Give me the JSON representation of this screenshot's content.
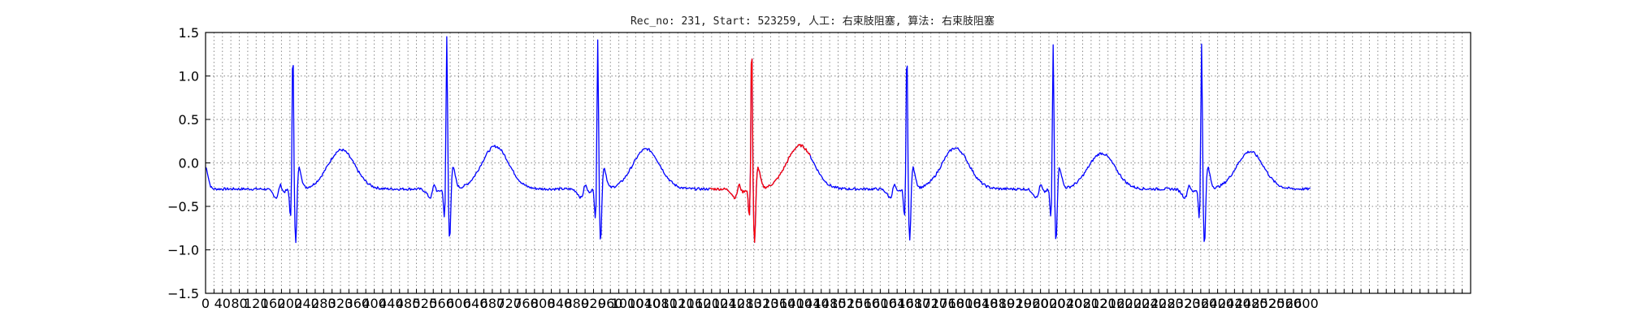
{
  "chart_data": {
    "type": "line",
    "title": "Rec_no: 231, Start: 523259, 人工: 右束肢阻塞, 算法: 右束肢阻塞",
    "xlabel": "",
    "ylabel": "",
    "xlim": [
      0,
      3000
    ],
    "ylim": [
      -1.5,
      1.5
    ],
    "grid": true,
    "x_tick_step": 20,
    "x_tick_labels": [
      "0",
      "40",
      "80",
      "120",
      "160",
      "200",
      "240",
      "280",
      "320",
      "360",
      "400",
      "440",
      "480",
      "520",
      "560",
      "600",
      "640",
      "680",
      "720",
      "760",
      "800",
      "840",
      "880",
      "920",
      "960",
      "1000",
      "1040",
      "1080",
      "1120",
      "1160",
      "1200",
      "1240",
      "1280",
      "1320",
      "1360",
      "1400",
      "1440",
      "1480",
      "1520",
      "1560",
      "1600",
      "1640",
      "1680",
      "1720",
      "1760",
      "1800",
      "1840",
      "1880",
      "1920",
      "1960",
      "2000",
      "2040",
      "2080",
      "2120",
      "2160",
      "2200",
      "2240",
      "2280",
      "2320",
      "2360",
      "2400",
      "2440",
      "2480",
      "2520",
      "2560",
      "2600"
    ],
    "y_tick_labels": [
      "1.5",
      "1.0",
      "0.5",
      "0.0",
      "−0.5",
      "−1.0",
      "−1.5"
    ],
    "y_ticks": [
      1.5,
      1.0,
      0.5,
      0.0,
      -0.5,
      -1.0,
      -1.5
    ],
    "highlight_color": "#ff0000",
    "base_color": "#0000ff",
    "beats": [
      {
        "r": 207,
        "r_peak": 1.43,
        "s_min": -1.1,
        "t_peak": 0.15
      },
      {
        "r": 572,
        "r_peak": 1.5,
        "s_min": -1.05,
        "t_peak": 0.19
      },
      {
        "r": 930,
        "r_peak": 1.45,
        "s_min": -1.08,
        "t_peak": 0.16
      },
      {
        "r": 1295,
        "r_peak": 1.5,
        "s_min": -1.1,
        "t_peak": 0.2
      },
      {
        "r": 1663,
        "r_peak": 1.42,
        "s_min": -1.07,
        "t_peak": 0.17
      },
      {
        "r": 2010,
        "r_peak": 1.4,
        "s_min": -1.07,
        "t_peak": 0.11
      },
      {
        "r": 2362,
        "r_peak": 1.42,
        "s_min": -1.13,
        "t_peak": 0.13
      }
    ],
    "series": [
      {
        "name": "",
        "x_start": 0,
        "x_end": 2620,
        "color": "#0000ff"
      },
      {
        "name": "",
        "x_start": 1195,
        "x_end": 1435,
        "color": "#ff0000"
      }
    ]
  }
}
